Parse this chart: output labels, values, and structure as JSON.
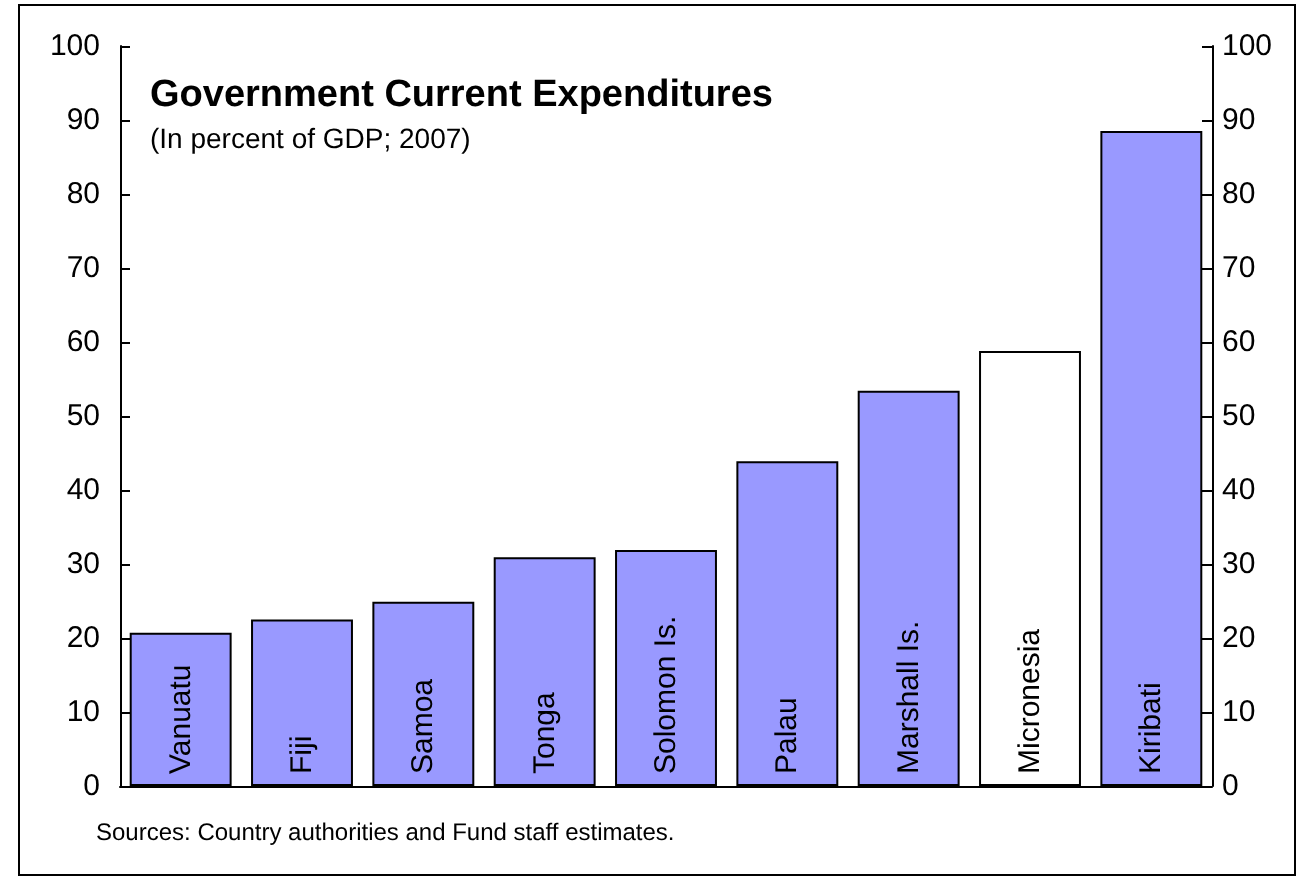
{
  "chart_data": {
    "type": "bar",
    "title": "Government Current Expenditures",
    "subtitle": "(In percent of GDP; 2007)",
    "categories": [
      "Vanuatu",
      "Fiji",
      "Samoa",
      "Tonga",
      "Solomon Is.",
      "Palau",
      "Marshall Is.",
      "Micronesia",
      "Kiribati"
    ],
    "values": [
      20.7,
      22.5,
      24.9,
      30.9,
      31.9,
      43.9,
      53.4,
      58.8,
      88.5
    ],
    "colors": [
      "#9999ff",
      "#9999ff",
      "#9999ff",
      "#9999ff",
      "#9999ff",
      "#9999ff",
      "#9999ff",
      "#ffffff",
      "#9999ff"
    ],
    "ylim": [
      0,
      100
    ],
    "yticks": [
      0,
      10,
      20,
      30,
      40,
      50,
      60,
      70,
      80,
      90,
      100
    ],
    "y2lim": [
      0,
      100
    ],
    "y2ticks": [
      0,
      10,
      20,
      30,
      40,
      50,
      60,
      70,
      80,
      90,
      100
    ],
    "annotations": [
      "Sources: Country authorities and Fund staff estimates."
    ]
  }
}
